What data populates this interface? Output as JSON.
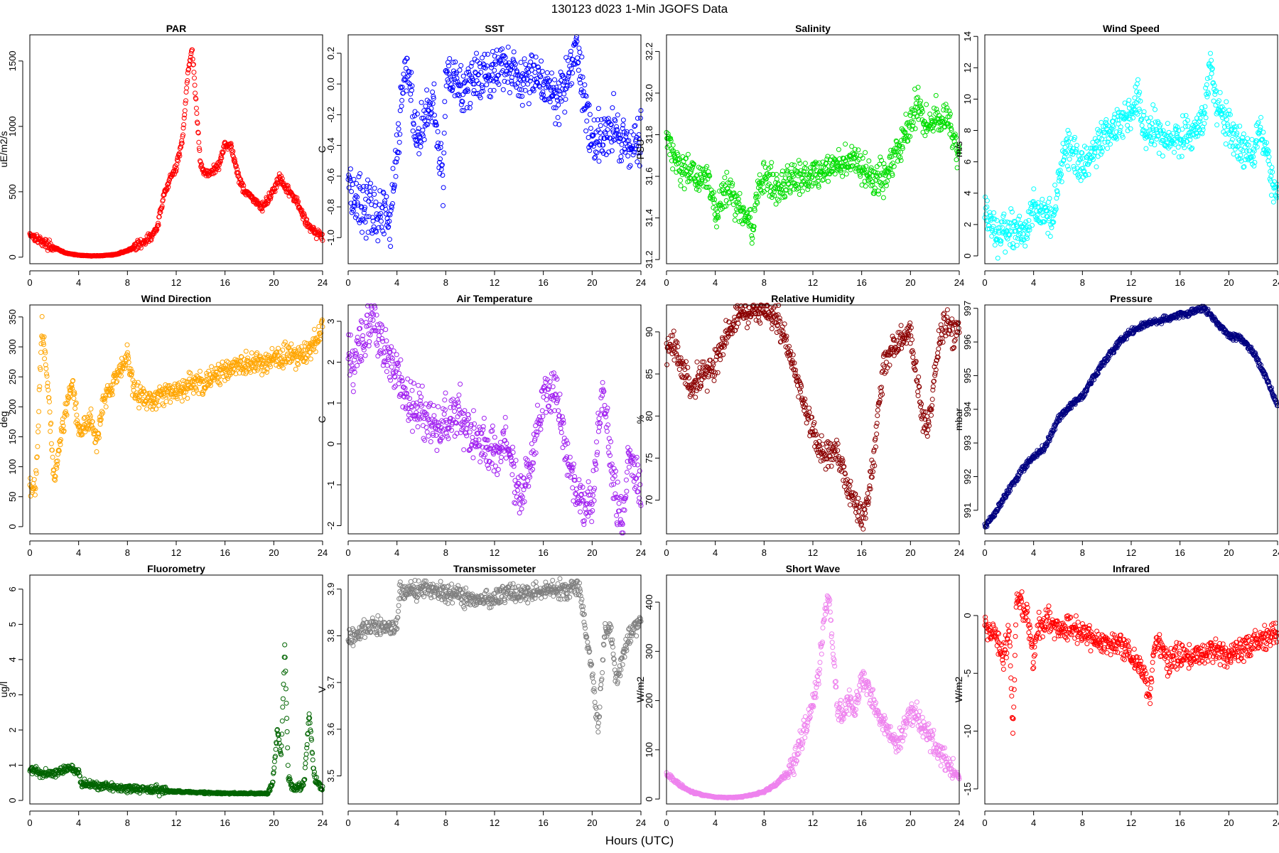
{
  "figure": {
    "title": "130123   d023   1-Min  JGOFS Data",
    "xlabel": "Hours (UTC)"
  },
  "chart_data": [
    {
      "type": "scatter",
      "title": "PAR",
      "ylabel": "uE/m2/s",
      "color": "#ff0000",
      "xlim": [
        0,
        24
      ],
      "xticks": [
        0,
        4,
        8,
        12,
        16,
        20,
        24
      ],
      "ylim": [
        -50,
        1700
      ],
      "yticks": [
        0,
        500,
        1000,
        1500
      ],
      "noise": 25,
      "shape": "log",
      "x": [
        0,
        0.5,
        1,
        2,
        3,
        4,
        5,
        6,
        7,
        8,
        9,
        10,
        10.5,
        11,
        11.5,
        12,
        12.5,
        13,
        13.3,
        13.6,
        14,
        14.5,
        15,
        15.5,
        16,
        16.5,
        17,
        17.5,
        18,
        18.5,
        19,
        19.5,
        20,
        20.5,
        21,
        21.5,
        22,
        22.5,
        23,
        23.5,
        24
      ],
      "y": [
        180,
        150,
        120,
        70,
        30,
        15,
        10,
        12,
        20,
        50,
        100,
        160,
        240,
        480,
        600,
        680,
        900,
        1450,
        1600,
        1200,
        700,
        630,
        660,
        700,
        870,
        850,
        650,
        520,
        480,
        420,
        380,
        430,
        520,
        600,
        520,
        480,
        400,
        300,
        230,
        180,
        160
      ]
    },
    {
      "type": "scatter",
      "title": "SST",
      "ylabel": "C",
      "color": "#0000ff",
      "xlim": [
        0,
        24
      ],
      "xticks": [
        0,
        4,
        8,
        12,
        16,
        20,
        24
      ],
      "ylim": [
        -1.17,
        0.32
      ],
      "yticks": [
        -1.0,
        -0.8,
        -0.6,
        -0.4,
        -0.2,
        0.0,
        0.2
      ],
      "noise": 0.13,
      "shape": "step",
      "x": [
        0,
        0.3,
        0.7,
        1.5,
        2.5,
        3.5,
        4.2,
        4.6,
        5,
        5.4,
        5.8,
        6.5,
        7,
        7.5,
        7.8,
        8,
        8.5,
        9,
        9.5,
        10,
        11,
        12,
        13,
        14,
        14.5,
        15,
        15.5,
        16,
        16.5,
        17,
        17.5,
        18,
        18.5,
        19,
        19.5,
        20,
        21,
        22,
        23,
        24
      ],
      "y": [
        -0.55,
        -0.7,
        -0.75,
        -0.8,
        -0.85,
        -0.9,
        -0.2,
        0.05,
        0.1,
        -0.3,
        -0.35,
        -0.2,
        -0.1,
        -0.5,
        -0.6,
        0.08,
        0.05,
        0.02,
        -0.05,
        0.0,
        0.05,
        0.1,
        0.1,
        0.05,
        0.0,
        0.15,
        0.05,
        0.0,
        -0.05,
        -0.1,
        -0.05,
        0.0,
        0.25,
        0.1,
        -0.2,
        -0.4,
        -0.3,
        -0.3,
        -0.4,
        -0.3
      ]
    },
    {
      "type": "scatter",
      "title": "Salinity",
      "ylabel": "PSU",
      "color": "#00dd00",
      "xlim": [
        0,
        24
      ],
      "xticks": [
        0,
        4,
        8,
        12,
        16,
        20,
        24
      ],
      "ylim": [
        31.18,
        32.28
      ],
      "yticks": [
        31.2,
        31.4,
        31.6,
        31.8,
        32.0,
        32.2
      ],
      "noise": 0.06,
      "shape": "step",
      "x": [
        0,
        0.3,
        0.8,
        1.5,
        2.5,
        3.5,
        4,
        5,
        6,
        7,
        7.5,
        8,
        9,
        10,
        11,
        12,
        13,
        14,
        15,
        16,
        17,
        18,
        19,
        20,
        20.5,
        21,
        21.5,
        22,
        22.5,
        23,
        23.5,
        24
      ],
      "y": [
        31.8,
        31.75,
        31.68,
        31.62,
        31.6,
        31.58,
        31.4,
        31.55,
        31.45,
        31.35,
        31.5,
        31.62,
        31.55,
        31.58,
        31.6,
        31.62,
        31.62,
        31.65,
        31.68,
        31.64,
        31.58,
        31.6,
        31.75,
        31.85,
        31.95,
        31.9,
        31.8,
        31.9,
        31.85,
        31.9,
        31.8,
        31.7
      ]
    },
    {
      "type": "scatter",
      "title": "Wind Speed",
      "ylabel": "m/s",
      "color": "#00ffff",
      "xlim": [
        0,
        24
      ],
      "xticks": [
        0,
        4,
        8,
        12,
        16,
        20,
        24
      ],
      "ylim": [
        -0.5,
        14.1
      ],
      "yticks": [
        0,
        2,
        4,
        6,
        8,
        10,
        12,
        14
      ],
      "noise": 0.9,
      "shape": "step",
      "x": [
        0,
        0.5,
        1,
        2,
        3,
        4,
        5,
        5.5,
        6,
        6.5,
        7,
        8,
        9,
        10,
        11,
        12,
        12.5,
        13,
        14,
        15,
        16,
        17,
        18,
        18.5,
        19,
        20,
        21,
        22,
        22.5,
        23,
        23.5,
        24
      ],
      "y": [
        2.8,
        2.2,
        1.2,
        1.5,
        1.6,
        2.8,
        3.0,
        2.2,
        4.5,
        6.8,
        7.0,
        5.5,
        7.0,
        7.8,
        8.5,
        9.0,
        10.5,
        8.2,
        8.0,
        7.2,
        7.5,
        8.0,
        9.0,
        12.5,
        9.5,
        8.2,
        7.0,
        6.5,
        8.3,
        7.0,
        5.0,
        3.8
      ]
    },
    {
      "type": "scatter",
      "title": "Wind Direction",
      "ylabel": "deg",
      "color": "#ffa500",
      "xlim": [
        0,
        24
      ],
      "xticks": [
        0,
        4,
        8,
        12,
        16,
        20,
        24
      ],
      "ylim": [
        -12,
        370
      ],
      "yticks": [
        0,
        50,
        100,
        150,
        200,
        250,
        300,
        350
      ],
      "noise": 14,
      "shape": "step",
      "x": [
        0,
        0.5,
        1,
        1.3,
        1.6,
        2,
        2.5,
        3,
        3.5,
        4,
        4.5,
        5,
        5.5,
        6,
        6.5,
        7,
        7.5,
        8,
        8.5,
        9,
        10,
        11,
        12,
        13,
        14,
        15,
        16,
        17,
        18,
        19,
        20,
        21,
        22,
        22.5,
        23,
        23.5,
        24
      ],
      "y": [
        65,
        70,
        340,
        280,
        200,
        80,
        150,
        200,
        240,
        160,
        170,
        180,
        140,
        210,
        220,
        250,
        260,
        285,
        230,
        220,
        210,
        220,
        228,
        235,
        240,
        250,
        260,
        268,
        270,
        275,
        280,
        285,
        285,
        290,
        295,
        310,
        335
      ]
    },
    {
      "type": "scatter",
      "title": "Air Temperature",
      "ylabel": "C",
      "color": "#a020f0",
      "xlim": [
        0,
        24
      ],
      "xticks": [
        0,
        4,
        8,
        12,
        16,
        20,
        24
      ],
      "ylim": [
        -2.2,
        3.4
      ],
      "yticks": [
        -2,
        -1,
        0,
        1,
        2,
        3
      ],
      "noise": 0.45,
      "shape": "step",
      "x": [
        0,
        0.5,
        1,
        2,
        3,
        4,
        5,
        6,
        7,
        8,
        9,
        10,
        11,
        12,
        13,
        14,
        15,
        16,
        17,
        18,
        19,
        20,
        20.5,
        21,
        21.5,
        22,
        22.5,
        23,
        23.5,
        24
      ],
      "y": [
        2.2,
        1.8,
        2.5,
        3.0,
        2.3,
        1.8,
        1.0,
        0.8,
        0.4,
        0.5,
        0.8,
        0.3,
        0.1,
        -0.3,
        0.2,
        -1.5,
        -0.5,
        1.2,
        1.2,
        -0.5,
        -1.4,
        -1.5,
        0.5,
        1.2,
        -0.5,
        -1.5,
        -1.9,
        -0.2,
        -0.8,
        -1.3
      ]
    },
    {
      "type": "scatter",
      "title": "Relative Humidity",
      "ylabel": "%",
      "color": "#8b0000",
      "xlim": [
        0,
        24
      ],
      "xticks": [
        0,
        4,
        8,
        12,
        16,
        20,
        24
      ],
      "ylim": [
        66,
        93.2
      ],
      "yticks": [
        70,
        75,
        80,
        85,
        90
      ],
      "noise": 1.3,
      "shape": "step",
      "x": [
        0,
        0.5,
        1,
        2,
        3,
        4,
        5,
        6,
        7,
        8,
        9,
        10,
        10.5,
        11,
        11.5,
        12,
        12.5,
        13,
        14,
        15,
        15.5,
        16,
        16.5,
        17,
        17.5,
        18,
        19,
        20,
        20.5,
        21,
        21.5,
        22,
        22.5,
        23,
        23.5,
        24
      ],
      "y": [
        88,
        88.5,
        87,
        83,
        85,
        86,
        90,
        92,
        92.3,
        92.5,
        91.5,
        88,
        86,
        83,
        80,
        78.5,
        76,
        75.5,
        75.5,
        71,
        69,
        68,
        70,
        75,
        83,
        87,
        89,
        90,
        85,
        80,
        78,
        85,
        90,
        91.5,
        89,
        91
      ]
    },
    {
      "type": "scatter",
      "title": "Pressure",
      "ylabel": "mbar",
      "color": "#000080",
      "xlim": [
        0,
        24
      ],
      "xticks": [
        0,
        4,
        8,
        12,
        16,
        20,
        24
      ],
      "ylim": [
        990.3,
        997.1
      ],
      "yticks": [
        991,
        992,
        993,
        994,
        995,
        996,
        997
      ],
      "noise": 0.07,
      "shape": "step",
      "x": [
        0,
        1,
        2,
        3,
        4,
        5,
        6,
        7,
        8,
        9,
        10,
        11,
        12,
        13,
        14,
        15,
        16,
        17,
        18,
        19,
        20,
        21,
        22,
        23,
        24
      ],
      "y": [
        990.5,
        991.0,
        991.6,
        992.2,
        992.6,
        992.9,
        993.7,
        994.1,
        994.4,
        995.0,
        995.5,
        996.0,
        996.3,
        996.5,
        996.6,
        996.7,
        996.8,
        996.9,
        997.0,
        996.6,
        996.2,
        996.1,
        995.7,
        995.0,
        994.1
      ]
    },
    {
      "type": "scatter",
      "title": "Fluorometry",
      "ylabel": "ug/l",
      "color": "#006400",
      "xlim": [
        0,
        24
      ],
      "xticks": [
        0,
        4,
        8,
        12,
        16,
        20,
        24
      ],
      "ylim": [
        -0.1,
        6.4
      ],
      "yticks": [
        0,
        1,
        2,
        3,
        4,
        5,
        6
      ],
      "noise": 0.09,
      "shape": "log",
      "x": [
        0,
        0.5,
        1,
        2,
        3,
        4,
        4.2,
        5,
        6,
        8,
        10,
        12,
        14,
        16,
        18,
        19.5,
        19.9,
        20.3,
        20.6,
        20.9,
        21.2,
        21.6,
        22,
        22.5,
        22.9,
        23.3,
        23.7,
        24
      ],
      "y": [
        0.9,
        0.85,
        0.75,
        0.8,
        0.9,
        0.85,
        0.45,
        0.45,
        0.4,
        0.35,
        0.3,
        0.25,
        0.22,
        0.2,
        0.2,
        0.2,
        0.5,
        2.0,
        1.2,
        4.5,
        0.6,
        0.35,
        0.35,
        0.5,
        2.5,
        0.7,
        0.45,
        0.3
      ]
    },
    {
      "type": "scatter",
      "title": "Transmissometer",
      "ylabel": "V",
      "color": "#808080",
      "xlim": [
        0,
        24
      ],
      "xticks": [
        0,
        4,
        8,
        12,
        16,
        20,
        24
      ],
      "ylim": [
        3.44,
        3.93
      ],
      "yticks": [
        3.5,
        3.6,
        3.7,
        3.8,
        3.9
      ],
      "noise": 0.015,
      "shape": "step",
      "x": [
        0,
        1,
        2,
        3,
        4,
        4.2,
        5,
        6,
        7,
        8,
        9,
        10,
        11,
        12,
        13,
        14,
        15,
        16,
        17,
        18,
        19,
        19.5,
        20,
        20.5,
        21,
        21.5,
        22,
        22.5,
        23,
        23.5,
        24
      ],
      "y": [
        3.79,
        3.81,
        3.82,
        3.82,
        3.82,
        3.9,
        3.89,
        3.9,
        3.9,
        3.89,
        3.89,
        3.88,
        3.88,
        3.88,
        3.89,
        3.89,
        3.89,
        3.9,
        3.9,
        3.9,
        3.91,
        3.8,
        3.72,
        3.6,
        3.8,
        3.82,
        3.7,
        3.75,
        3.8,
        3.82,
        3.84
      ]
    },
    {
      "type": "scatter",
      "title": "Short Wave",
      "ylabel": "W/m2",
      "color": "#ee82ee",
      "xlim": [
        0,
        24
      ],
      "xticks": [
        0,
        4,
        8,
        12,
        16,
        20,
        24
      ],
      "ylim": [
        -10,
        455
      ],
      "yticks": [
        0,
        100,
        200,
        300,
        400
      ],
      "noise": 18,
      "shape": "log",
      "x": [
        0,
        0.5,
        1,
        2,
        3,
        4,
        5,
        6,
        7,
        8,
        9,
        10,
        10.5,
        11,
        11.5,
        12,
        12.5,
        13,
        13.3,
        13.7,
        14,
        14.5,
        15,
        15.5,
        16,
        16.5,
        17,
        17.5,
        18,
        18.5,
        19,
        19.5,
        20,
        20.5,
        21,
        21.5,
        22,
        22.5,
        23,
        23.5,
        24
      ],
      "y": [
        50,
        40,
        30,
        15,
        8,
        4,
        3,
        4,
        8,
        15,
        30,
        55,
        80,
        120,
        150,
        190,
        260,
        380,
        420,
        280,
        180,
        170,
        200,
        180,
        250,
        230,
        190,
        160,
        150,
        130,
        110,
        140,
        180,
        170,
        150,
        130,
        110,
        90,
        70,
        55,
        45
      ]
    },
    {
      "type": "scatter",
      "title": "Infrared",
      "ylabel": "W/m2",
      "color": "#ff0000",
      "xlim": [
        0,
        24
      ],
      "xticks": [
        0,
        4,
        8,
        12,
        16,
        20,
        24
      ],
      "ylim": [
        -16.3,
        3.5
      ],
      "yticks": [
        -15,
        -10,
        -5,
        0
      ],
      "noise": 0.8,
      "shape": "step",
      "x": [
        0,
        0.5,
        1,
        1.5,
        2,
        2.3,
        2.6,
        3,
        3.5,
        4,
        4.3,
        5,
        6,
        7,
        8,
        9,
        10,
        11,
        12,
        12.5,
        13,
        13.5,
        14,
        15,
        16,
        17,
        18,
        19,
        20,
        21,
        22,
        23,
        24
      ],
      "y": [
        -1,
        -1.5,
        -2,
        -4,
        -1,
        -10,
        1.5,
        1,
        0,
        -4,
        -1,
        -0.5,
        -1,
        -1.2,
        -1.5,
        -2,
        -2.5,
        -2.5,
        -3.5,
        -4,
        -5,
        -7,
        -2,
        -4,
        -3.5,
        -3.5,
        -3.5,
        -3,
        -3.5,
        -3,
        -2.5,
        -2,
        -1.5
      ]
    }
  ]
}
